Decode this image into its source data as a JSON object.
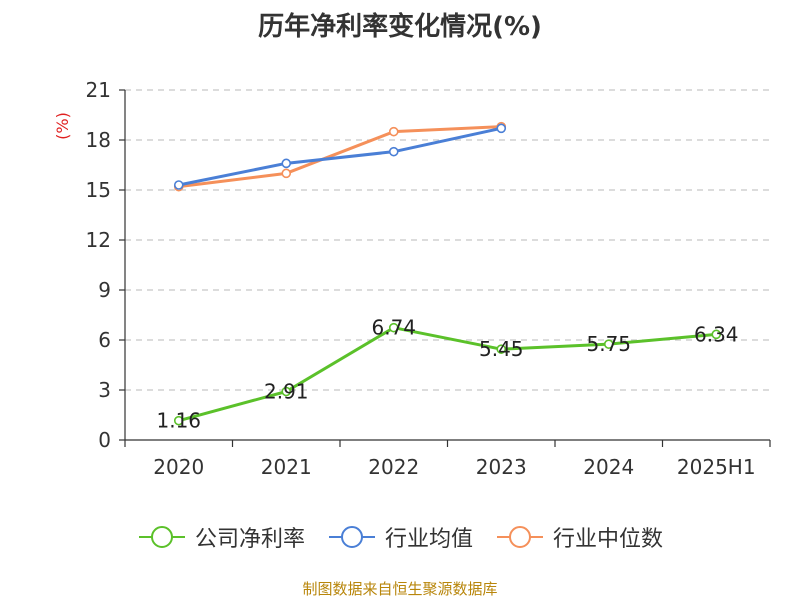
{
  "chart_data": {
    "type": "line",
    "title": "历年净利率变化情况(%)",
    "ylabel": "(%)",
    "categories": [
      "2020",
      "2021",
      "2022",
      "2023",
      "2024",
      "2025H1"
    ],
    "ylim": [
      0,
      21
    ],
    "yticks": [
      0,
      3,
      6,
      9,
      12,
      15,
      18,
      21
    ],
    "grid": true,
    "legend_position": "bottom",
    "series": [
      {
        "name": "公司净利率",
        "color": "#5bc12a",
        "values": [
          1.16,
          2.91,
          6.74,
          5.45,
          5.75,
          6.34
        ],
        "data_labels": [
          "1.16",
          "2.91",
          "6.74",
          "5.45",
          "5.75",
          "6.34"
        ]
      },
      {
        "name": "行业均值",
        "color": "#4a7fd6",
        "values": [
          15.3,
          16.6,
          17.3,
          18.7,
          null,
          null
        ]
      },
      {
        "name": "行业中位数",
        "color": "#f5905a",
        "values": [
          15.2,
          16.0,
          18.5,
          18.8,
          null,
          null
        ]
      }
    ]
  },
  "source_text": "制图数据来自恒生聚源数据库"
}
